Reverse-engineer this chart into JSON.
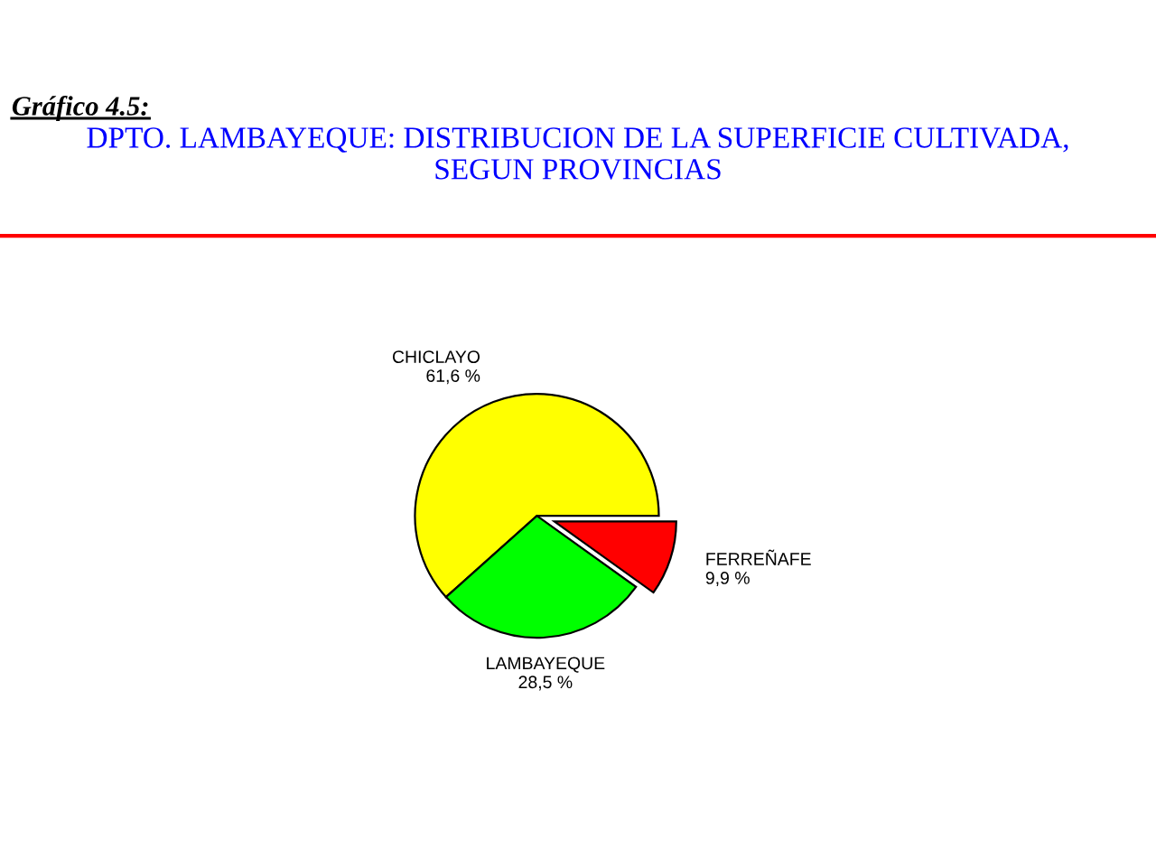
{
  "chart_data": {
    "type": "pie",
    "title": "DPTO. LAMBAYEQUE: DISTRIBUCION DE LA SUPERFICIE CULTIVADA,\nSEGUN PROVINCIAS",
    "annotations": [
      "Gráfico 4.5:"
    ],
    "categories": [
      "CHICLAYO",
      "LAMBAYEQUE",
      "FERREÑAFE"
    ],
    "values": [
      61.6,
      28.5,
      9.9
    ],
    "value_labels": [
      "61,6 %",
      "28,5 %",
      "9,9 %"
    ],
    "colors": [
      "#ffff00",
      "#00ff00",
      "#ff0000"
    ]
  }
}
